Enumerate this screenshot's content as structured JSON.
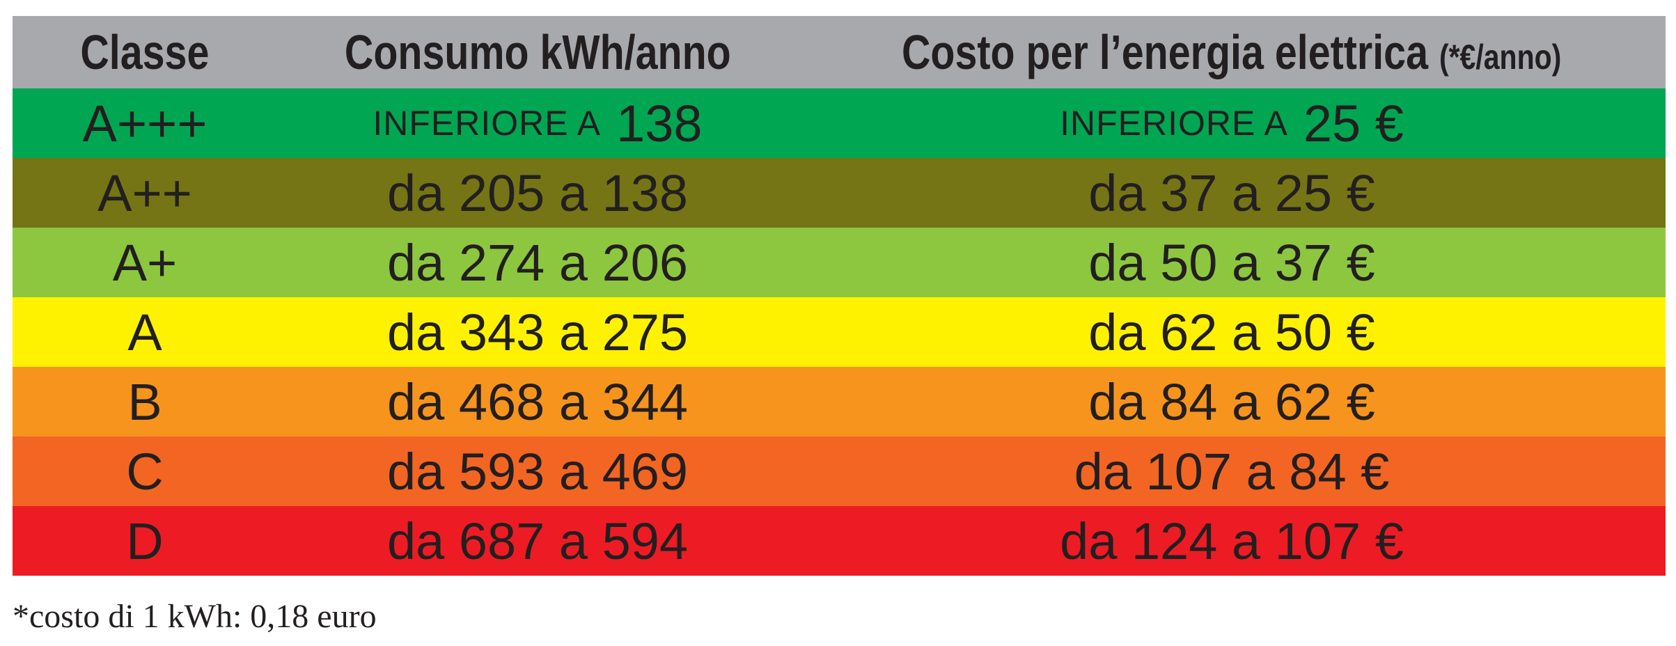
{
  "table": {
    "header": [
      "Classe",
      "Consumo kWh/anno",
      {
        "text": "Costo per l’energia elettrica",
        "unit": "(*€/anno)"
      }
    ],
    "header_color": "#a7a9ac",
    "rows": [
      {
        "color": "#00a651",
        "cells": [
          "A+++",
          {
            "small": "INFERIORE A",
            "large": "138"
          },
          {
            "small": "INFERIORE A",
            "large": "25 €"
          }
        ]
      },
      {
        "color": "#767516",
        "cells": [
          "A++",
          "da 205 a 138",
          "da 37 a 25 €"
        ]
      },
      {
        "color": "#8dc63f",
        "cells": [
          "A+",
          "da 274 a 206",
          "da 50 a 37 €"
        ]
      },
      {
        "color": "#fff200",
        "cells": [
          "A",
          "da 343 a 275",
          "da 62 a 50 €"
        ]
      },
      {
        "color": "#f7941d",
        "cells": [
          "B",
          "da 468 a 344",
          "da 84 a 62 €"
        ]
      },
      {
        "color": "#f26522",
        "cells": [
          "C",
          "da 593 a 469",
          "da 107 a 84 €"
        ]
      },
      {
        "color": "#ed1c24",
        "cells": [
          "D",
          "da 687 a 594",
          "da 124 a 107 €"
        ]
      }
    ]
  },
  "footnote": "*costo di 1 kWh: 0,18 euro"
}
